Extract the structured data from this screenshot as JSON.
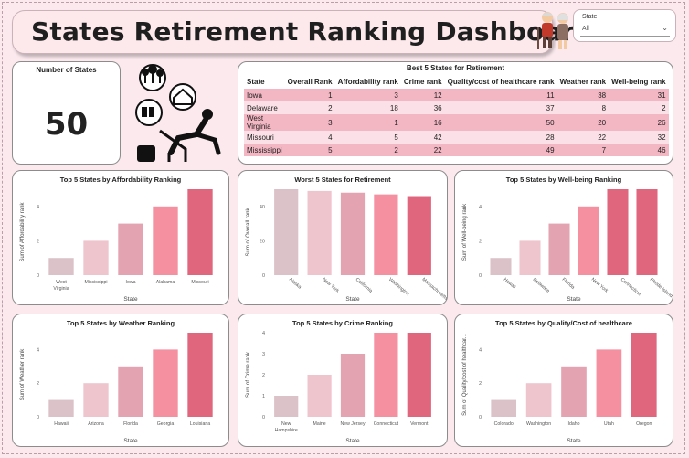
{
  "title": "States Retirement Ranking Dashboard",
  "slicer": {
    "label": "State",
    "value": "All"
  },
  "kpi": {
    "label": "Number of States",
    "value": "50"
  },
  "table": {
    "title": "Best 5 States for Retirement",
    "headers": [
      "State",
      "Overall Rank",
      "Affordability rank",
      "Crime rank",
      "Quality/cost of healthcare rank",
      "Weather rank",
      "Well-being rank"
    ],
    "rows": [
      [
        "Iowa",
        "1",
        "3",
        "12",
        "11",
        "38",
        "31"
      ],
      [
        "Delaware",
        "2",
        "18",
        "36",
        "37",
        "8",
        "2"
      ],
      [
        "West Virginia",
        "3",
        "1",
        "16",
        "50",
        "20",
        "26"
      ],
      [
        "Missouri",
        "4",
        "5",
        "42",
        "28",
        "22",
        "32"
      ],
      [
        "Mississippi",
        "5",
        "2",
        "22",
        "49",
        "7",
        "46"
      ]
    ]
  },
  "colors": [
    "#dbc2c8",
    "#efc5cd",
    "#e3a3b1",
    "#f4909f",
    "#e0667d"
  ],
  "charts": [
    {
      "title": "Top 5 States by Affordability Ranking",
      "type": "bar",
      "xlabel": "State",
      "ylabel": "Sum of Affordability rank",
      "categories": [
        "West Virginia",
        "Mississippi",
        "Iowa",
        "Alabama",
        "Missouri"
      ],
      "values": [
        1,
        2,
        3,
        4,
        5
      ],
      "ylim": [
        0,
        5
      ],
      "ticks": [
        0,
        2,
        4
      ],
      "rotate": false
    },
    {
      "title": "Worst 5 States for Retirement",
      "type": "bar",
      "xlabel": "State",
      "ylabel": "Sum of Overall rank",
      "categories": [
        "Alaska",
        "New York",
        "California",
        "Washington",
        "Massachusetts"
      ],
      "values": [
        50,
        49,
        48,
        47,
        46
      ],
      "ylim": [
        0,
        50
      ],
      "ticks": [
        0,
        20,
        40
      ],
      "rotate": true
    },
    {
      "title": "Top 5 States by Well-being Ranking",
      "type": "bar",
      "xlabel": "State",
      "ylabel": "Sum of Well-being rank",
      "categories": [
        "Hawaii",
        "Delaware",
        "Florida",
        "New York",
        "Connecticut",
        "Rhode Island"
      ],
      "values": [
        1,
        2,
        3,
        4,
        5,
        5
      ],
      "ylim": [
        0,
        5
      ],
      "ticks": [
        0,
        2,
        4
      ],
      "rotate": true
    },
    {
      "title": "Top 5 States by Weather Ranking",
      "type": "bar",
      "xlabel": "State",
      "ylabel": "Sum of Weather rank",
      "categories": [
        "Hawaii",
        "Arizona",
        "Florida",
        "Georgia",
        "Louisiana"
      ],
      "values": [
        1,
        2,
        3,
        4,
        5
      ],
      "ylim": [
        0,
        5
      ],
      "ticks": [
        0,
        2,
        4
      ],
      "rotate": false
    },
    {
      "title": "Top 5 States by Crime Ranking",
      "type": "bar",
      "xlabel": "State",
      "ylabel": "Sum of Crime rank",
      "categories": [
        "New Hampshire",
        "Maine",
        "New Jersey",
        "Connecticut",
        "Vermont"
      ],
      "values": [
        1,
        2,
        3,
        4,
        4
      ],
      "ylim": [
        0,
        4
      ],
      "ticks": [
        0,
        1,
        2,
        3,
        4
      ],
      "rotate": false
    },
    {
      "title": "Top 5 States by Quality/Cost of healthcare",
      "type": "bar",
      "xlabel": "State",
      "ylabel": "Sum of Quality/cost of healthcar...",
      "categories": [
        "Colorado",
        "Washington",
        "Idaho",
        "Utah",
        "Oregon"
      ],
      "values": [
        1,
        2,
        3,
        4,
        5
      ],
      "ylim": [
        0,
        5
      ],
      "ticks": [
        0,
        2,
        4
      ],
      "rotate": false
    }
  ]
}
